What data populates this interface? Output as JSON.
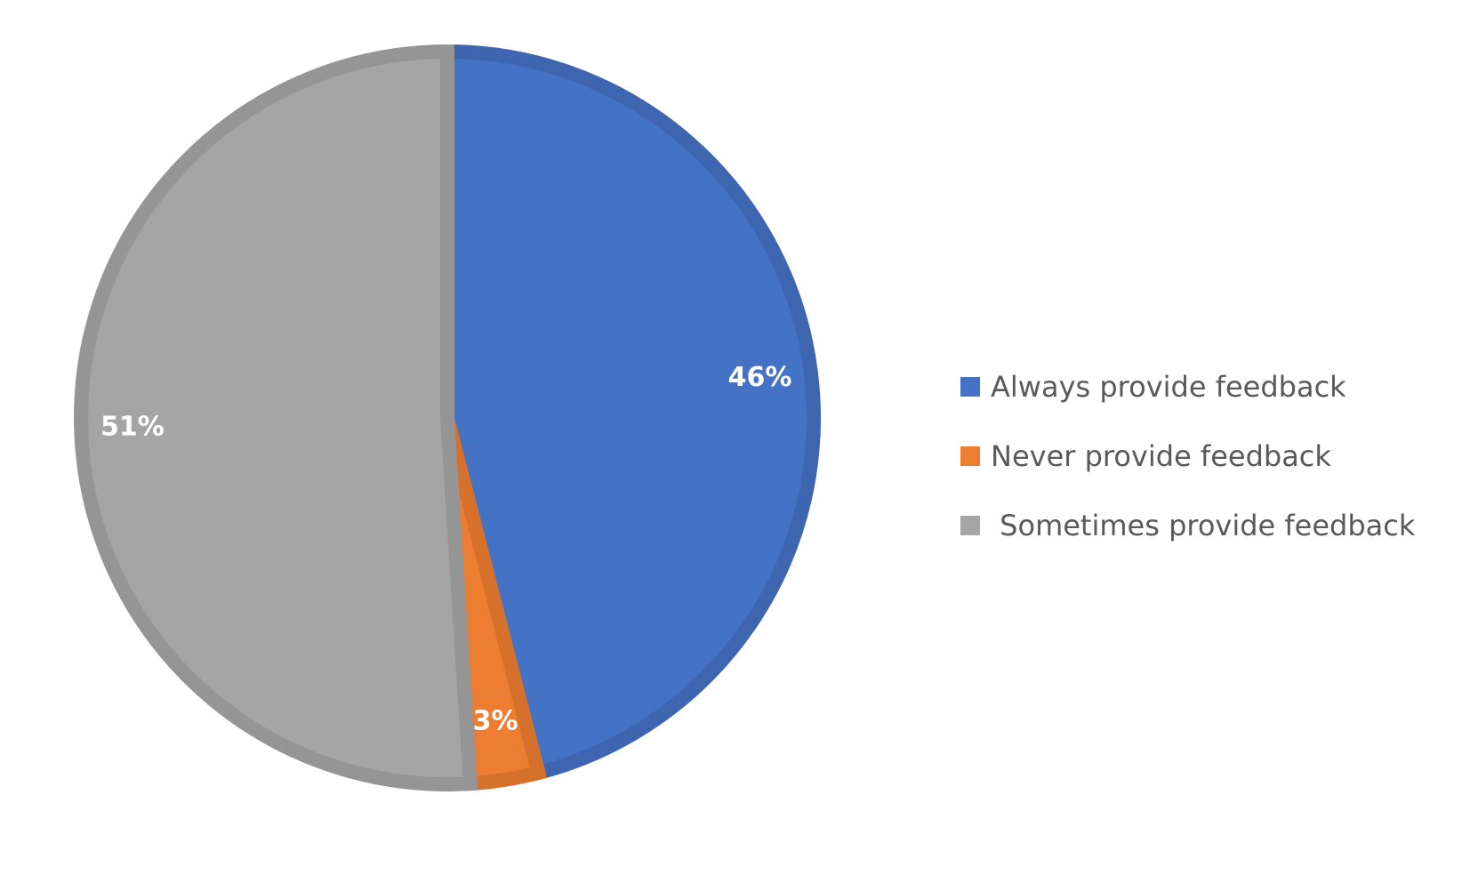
{
  "chart_data": {
    "type": "pie",
    "title": "",
    "categories": [
      "Always provide feedback",
      "Never provide feedback",
      "Sometimes provide feedback"
    ],
    "values": [
      46,
      3,
      51
    ],
    "data_labels": [
      "46%",
      "3%",
      "51%"
    ],
    "colors": [
      "#4472C4",
      "#ED7D31",
      "#A5A5A5"
    ],
    "border_colors": [
      "#3E65B0",
      "#D6712C",
      "#959595"
    ],
    "start_angle_deg": 0,
    "direction": "clockwise",
    "legend": {
      "position": "right",
      "entries": [
        "Always provide feedback",
        "Never provide feedback",
        " Sometimes provide feedback"
      ]
    }
  }
}
